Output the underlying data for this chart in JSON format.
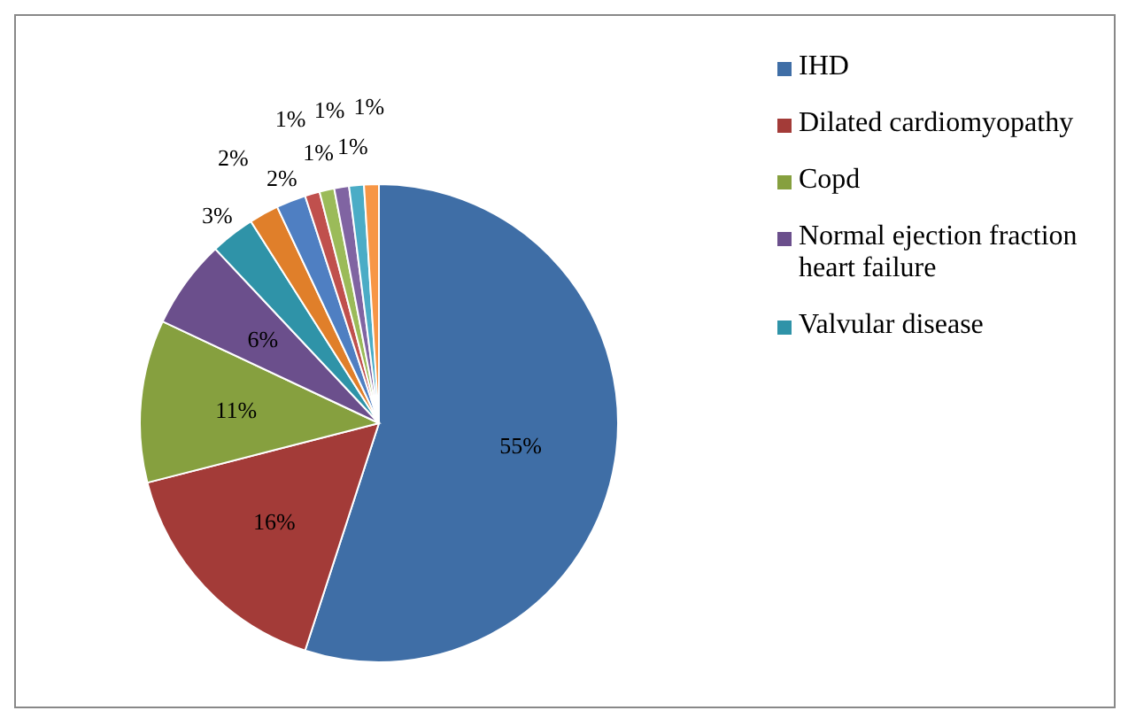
{
  "chart_data": {
    "type": "pie",
    "categories": [
      "IHD",
      "Dilated cardiomyopathy",
      "Copd",
      "Normal ejection fraction heart failure",
      "Valvular disease",
      null,
      null,
      null,
      null,
      null,
      null,
      null
    ],
    "values": [
      55,
      16,
      11,
      6,
      3,
      2,
      2,
      1,
      1,
      1,
      1,
      1
    ],
    "value_labels": [
      "55%",
      "16%",
      "11%",
      "6%",
      "3%",
      "2%",
      "2%",
      "1%",
      "1%",
      "1%",
      "1%",
      "1%"
    ],
    "colors": [
      "#3f6ea6",
      "#a33b38",
      "#86a03f",
      "#6b4f8c",
      "#2f93a8",
      "#e07f2a",
      "#4f7fc2",
      "#c0504d",
      "#9bbb59",
      "#8064a2",
      "#4bacc6",
      "#f79646"
    ],
    "legend": "right"
  }
}
